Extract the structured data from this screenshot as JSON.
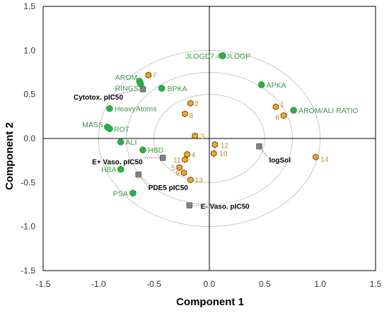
{
  "chart_data": {
    "type": "scatter",
    "xlabel": "Component 1",
    "ylabel": "Component 2",
    "xlim": [
      -1.5,
      1.5
    ],
    "ylim": [
      -1.5,
      1.5
    ],
    "x_ticks": [
      "-1.5",
      "-1.0",
      "-0.5",
      "0.0",
      "0.5",
      "1.0",
      "1.5"
    ],
    "y_ticks": [
      "1.5",
      "1.0",
      "0.5",
      "0.0",
      "-0.5",
      "-1.0",
      "-1.5"
    ],
    "circles": [
      0.5,
      0.75,
      1.0
    ],
    "colors": {
      "variables": "#2db04b",
      "compounds": "#f5a623",
      "responses": "#808080",
      "circle": "#c8c8c8"
    },
    "variables": [
      {
        "label": "JLOGD7.4",
        "x": 0.12,
        "y": 0.94
      },
      {
        "label": "JLOGP",
        "x": 0.12,
        "y": 0.94
      },
      {
        "label": "AROM",
        "x": -0.63,
        "y": 0.65
      },
      {
        "label": "RINGS",
        "x": -0.62,
        "y": 0.62
      },
      {
        "label": "BPKA",
        "x": -0.43,
        "y": 0.57
      },
      {
        "label": "APKA",
        "x": 0.47,
        "y": 0.61
      },
      {
        "label": "AROM/ALI RATIO",
        "x": 0.76,
        "y": 0.32
      },
      {
        "label": "HeavyAtoms",
        "x": -0.9,
        "y": 0.34
      },
      {
        "label": "MASS",
        "x": -0.92,
        "y": 0.13
      },
      {
        "label": "ROT",
        "x": -0.9,
        "y": 0.11
      },
      {
        "label": "ALI",
        "x": -0.8,
        "y": -0.04
      },
      {
        "label": "HBD",
        "x": -0.6,
        "y": -0.13
      },
      {
        "label": "HBA",
        "x": -0.8,
        "y": -0.35
      },
      {
        "label": "PSA",
        "x": -0.69,
        "y": -0.62
      }
    ],
    "compounds": [
      {
        "label": "1",
        "x": 0.6,
        "y": 0.36
      },
      {
        "label": "2",
        "x": -0.17,
        "y": 0.4
      },
      {
        "label": "3",
        "x": -0.13,
        "y": 0.03
      },
      {
        "label": "4",
        "x": -0.2,
        "y": -0.18
      },
      {
        "label": "5",
        "x": -0.27,
        "y": -0.33
      },
      {
        "label": "6",
        "x": 0.67,
        "y": 0.26
      },
      {
        "label": "7",
        "x": -0.55,
        "y": 0.72
      },
      {
        "label": "8",
        "x": -0.22,
        "y": 0.28
      },
      {
        "label": "9",
        "x": -0.23,
        "y": -0.39
      },
      {
        "label": "10",
        "x": 0.04,
        "y": -0.17
      },
      {
        "label": "11",
        "x": -0.22,
        "y": -0.24
      },
      {
        "label": "12",
        "x": 0.05,
        "y": -0.07
      },
      {
        "label": "13",
        "x": -0.17,
        "y": -0.47
      },
      {
        "label": "14",
        "x": 0.96,
        "y": -0.21
      }
    ],
    "responses": [
      {
        "label": "Cytotox. pIC50",
        "x": -0.6,
        "y": 0.56
      },
      {
        "label": "E+ Vaso. pIC50",
        "x": -0.42,
        "y": -0.22
      },
      {
        "label": "PDE5 pIC50",
        "x": -0.64,
        "y": -0.41
      },
      {
        "label": "E- Vaso. pIC50",
        "x": -0.18,
        "y": -0.76
      },
      {
        "label": "logSol",
        "x": 0.45,
        "y": -0.09
      }
    ]
  }
}
